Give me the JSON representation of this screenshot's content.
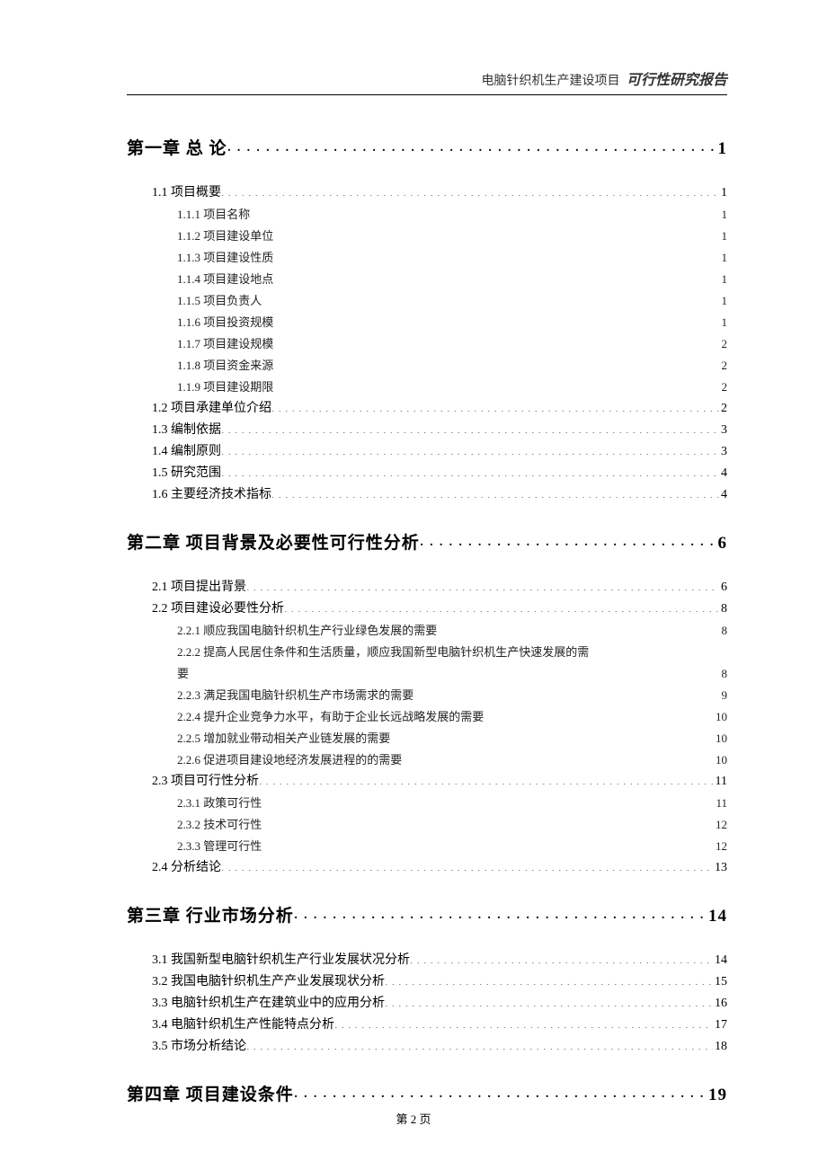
{
  "header": {
    "project": "电脑针织机生产建设项目",
    "report": "可行性研究报告"
  },
  "footer": {
    "pageLabel": "第 2 页"
  },
  "toc": [
    {
      "level": 1,
      "label": "第一章 总 论",
      "page": "1"
    },
    {
      "level": 2,
      "label": "1.1 项目概要",
      "page": "1"
    },
    {
      "level": 3,
      "label": "1.1.1 项目名称",
      "page": "1"
    },
    {
      "level": 3,
      "label": "1.1.2 项目建设单位",
      "page": "1"
    },
    {
      "level": 3,
      "label": "1.1.3 项目建设性质",
      "page": "1"
    },
    {
      "level": 3,
      "label": "1.1.4 项目建设地点",
      "page": "1"
    },
    {
      "level": 3,
      "label": "1.1.5 项目负责人",
      "page": "1"
    },
    {
      "level": 3,
      "label": "1.1.6 项目投资规模",
      "page": "1"
    },
    {
      "level": 3,
      "label": "1.1.7 项目建设规模",
      "page": "2"
    },
    {
      "level": 3,
      "label": "1.1.8 项目资金来源",
      "page": "2"
    },
    {
      "level": 3,
      "label": "1.1.9 项目建设期限",
      "page": "2"
    },
    {
      "level": 2,
      "label": "1.2 项目承建单位介绍",
      "page": "2"
    },
    {
      "level": 2,
      "label": "1.3 编制依据",
      "page": "3"
    },
    {
      "level": 2,
      "label": "1.4 编制原则",
      "page": "3"
    },
    {
      "level": 2,
      "label": "1.5 研究范围",
      "page": "4"
    },
    {
      "level": 2,
      "label": "1.6 主要经济技术指标",
      "page": "4"
    },
    {
      "level": 1,
      "label": "第二章 项目背景及必要性可行性分析",
      "page": "6"
    },
    {
      "level": 2,
      "label": "2.1 项目提出背景",
      "page": "6"
    },
    {
      "level": 2,
      "label": "2.2 项目建设必要性分析",
      "page": "8"
    },
    {
      "level": 3,
      "label": "2.2.1 顺应我国电脑针织机生产行业绿色发展的需要",
      "page": "8"
    },
    {
      "level": 3,
      "wrap": true,
      "line1": "2.2.2 提高人民居住条件和生活质量，顺应我国新型电脑针织机生产快速发展的需",
      "line2": "要",
      "page": "8"
    },
    {
      "level": 3,
      "label": "2.2.3 满足我国电脑针织机生产市场需求的需要",
      "page": "9"
    },
    {
      "level": 3,
      "label": "2.2.4 提升企业竞争力水平，有助于企业长远战略发展的需要",
      "page": "10"
    },
    {
      "level": 3,
      "label": "2.2.5 增加就业带动相关产业链发展的需要",
      "page": "10"
    },
    {
      "level": 3,
      "label": "2.2.6 促进项目建设地经济发展进程的的需要",
      "page": "10"
    },
    {
      "level": 2,
      "label": "2.3 项目可行性分析",
      "page": "11"
    },
    {
      "level": 3,
      "label": "2.3.1 政策可行性",
      "page": "11"
    },
    {
      "level": 3,
      "label": "2.3.2 技术可行性",
      "page": "12"
    },
    {
      "level": 3,
      "label": "2.3.3 管理可行性",
      "page": "12"
    },
    {
      "level": 2,
      "label": "2.4 分析结论",
      "page": "13"
    },
    {
      "level": 1,
      "label": "第三章 行业市场分析",
      "page": "14"
    },
    {
      "level": 2,
      "label": "3.1 我国新型电脑针织机生产行业发展状况分析",
      "page": "14"
    },
    {
      "level": 2,
      "label": "3.2 我国电脑针织机生产产业发展现状分析",
      "page": "15"
    },
    {
      "level": 2,
      "label": "3.3 电脑针织机生产在建筑业中的应用分析",
      "page": "16"
    },
    {
      "level": 2,
      "label": "3.4 电脑针织机生产性能特点分析",
      "page": "17"
    },
    {
      "level": 2,
      "label": "3.5 市场分析结论",
      "page": "18"
    },
    {
      "level": 1,
      "label": "第四章 项目建设条件",
      "page": "19"
    }
  ]
}
